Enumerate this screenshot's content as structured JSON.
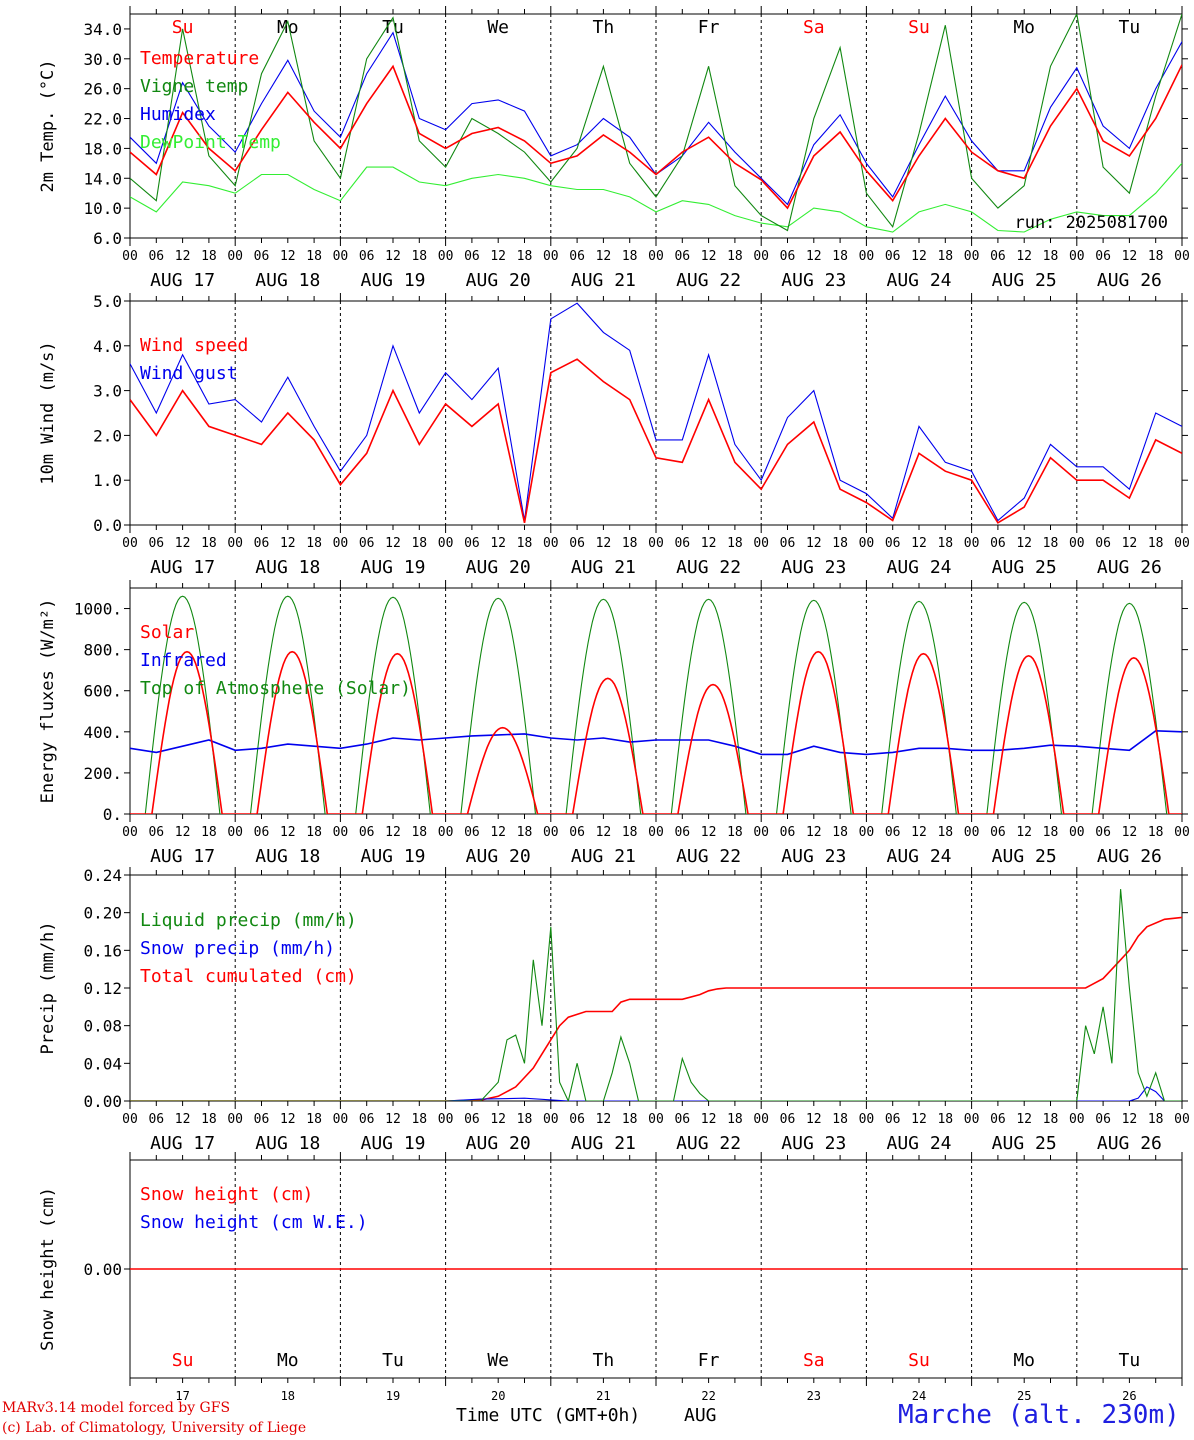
{
  "colors": {
    "red": "#ff0000",
    "blue": "#0000ee",
    "darkgreen": "#118811",
    "lightgreen": "#33ee33",
    "weekend": "#ff0000",
    "weekday": "#000000"
  },
  "days": {
    "dates": [
      "AUG 17",
      "AUG 18",
      "AUG 19",
      "AUG 20",
      "AUG 21",
      "AUG 22",
      "AUG 23",
      "AUG 24",
      "AUG 25",
      "AUG 26"
    ],
    "weekday_names": [
      "Su",
      "Mo",
      "Tu",
      "We",
      "Th",
      "Fr",
      "Sa",
      "Su",
      "Mo",
      "Tu"
    ],
    "weekend": [
      true,
      false,
      false,
      false,
      false,
      false,
      true,
      true,
      false,
      false
    ],
    "day_numbers": [
      "17",
      "18",
      "19",
      "20",
      "21",
      "22",
      "23",
      "24",
      "25",
      "26"
    ],
    "hour_ticks": [
      "00",
      "06",
      "12",
      "18"
    ],
    "final_hour": "00"
  },
  "footer": {
    "credit_line1": "MARv3.14 model forced by GFS",
    "credit_line2": "(c) Lab. of Climatology, University of Liege",
    "x_title": "Time UTC (GMT+0h)",
    "month": "AUG",
    "station": "Marche (alt. 230m)"
  },
  "chart_data": [
    {
      "type": "line",
      "ylabel": "2m Temp. (°C)",
      "ylim": [
        6.0,
        36.0
      ],
      "yticks": [
        "6.0",
        "10.0",
        "14.0",
        "18.0",
        "22.0",
        "26.0",
        "30.0",
        "34.0"
      ],
      "ytick_values": [
        6,
        10,
        14,
        18,
        22,
        26,
        30,
        34
      ],
      "annotation": "run: 2025081700",
      "series": [
        {
          "name": "Temperature",
          "color": "red",
          "hours": [
            0,
            6,
            12,
            18,
            24,
            30,
            36,
            42,
            48,
            54,
            60,
            66,
            72,
            78,
            84,
            90,
            96,
            102,
            108,
            114,
            120,
            126,
            132,
            138,
            144,
            150,
            156,
            162,
            168,
            174,
            180,
            186,
            192,
            198,
            204,
            210,
            216,
            222,
            228,
            234,
            240
          ],
          "values": [
            17.5,
            14.5,
            22.8,
            18.0,
            15.0,
            20.5,
            25.5,
            21.5,
            18.0,
            24.0,
            29.0,
            20.0,
            18.0,
            20.0,
            20.8,
            19.0,
            16.0,
            17.0,
            19.8,
            17.5,
            14.5,
            17.5,
            19.5,
            16.0,
            13.8,
            10.0,
            17.0,
            20.2,
            15.0,
            11.0,
            17.0,
            22.0,
            17.5,
            15.0,
            14.0,
            21.0,
            26.0,
            19.0,
            17.0,
            22.0,
            29.2
          ]
        },
        {
          "name": "Vigne temp",
          "color": "darkgreen",
          "hours": [
            0,
            6,
            12,
            18,
            24,
            30,
            36,
            42,
            48,
            54,
            60,
            66,
            72,
            78,
            84,
            90,
            96,
            102,
            108,
            114,
            120,
            126,
            132,
            138,
            144,
            150,
            156,
            162,
            168,
            174,
            180,
            186,
            192,
            198,
            204,
            210,
            216,
            222,
            228,
            234,
            240
          ],
          "values": [
            14.0,
            11.0,
            34.0,
            17.0,
            13.0,
            28.0,
            35.0,
            19.0,
            14.0,
            30.0,
            35.5,
            19.0,
            15.5,
            22.0,
            20.0,
            17.5,
            13.5,
            18.0,
            29.0,
            16.0,
            11.5,
            17.0,
            29.0,
            13.0,
            9.0,
            7.0,
            22.0,
            31.5,
            12.0,
            7.5,
            20.0,
            34.5,
            14.0,
            10.0,
            13.0,
            29.0,
            36.0,
            15.5,
            12.0,
            25.0,
            36.0
          ]
        },
        {
          "name": "Humidex",
          "color": "blue",
          "hours": [
            0,
            6,
            12,
            18,
            24,
            30,
            36,
            42,
            48,
            54,
            60,
            66,
            72,
            78,
            84,
            90,
            96,
            102,
            108,
            114,
            120,
            126,
            132,
            138,
            144,
            150,
            156,
            162,
            168,
            174,
            180,
            186,
            192,
            198,
            204,
            210,
            216,
            222,
            228,
            234,
            240
          ],
          "values": [
            19.5,
            16.0,
            26.8,
            21.0,
            17.5,
            24.0,
            29.8,
            23.0,
            19.5,
            28.0,
            33.5,
            22.0,
            20.5,
            24.0,
            24.5,
            23.0,
            17.0,
            18.5,
            22.0,
            19.5,
            14.5,
            17.0,
            21.5,
            17.5,
            14.0,
            10.5,
            18.5,
            22.5,
            16.0,
            11.5,
            18.5,
            25.0,
            19.0,
            15.0,
            15.0,
            23.5,
            28.8,
            21.0,
            18.0,
            26.0,
            32.3
          ]
        },
        {
          "name": "DewPoint Temp",
          "color": "lightgreen",
          "hours": [
            0,
            6,
            12,
            18,
            24,
            30,
            36,
            42,
            48,
            54,
            60,
            66,
            72,
            78,
            84,
            90,
            96,
            102,
            108,
            114,
            120,
            126,
            132,
            138,
            144,
            150,
            156,
            162,
            168,
            174,
            180,
            186,
            192,
            198,
            204,
            210,
            216,
            222,
            228,
            234,
            240
          ],
          "values": [
            11.5,
            9.5,
            13.5,
            13.0,
            12.0,
            14.5,
            14.5,
            12.5,
            11.0,
            15.5,
            15.5,
            13.5,
            13.0,
            14.0,
            14.5,
            14.0,
            13.0,
            12.5,
            12.5,
            11.5,
            9.5,
            11.0,
            10.5,
            9.0,
            8.0,
            7.5,
            10.0,
            9.5,
            7.5,
            6.8,
            9.5,
            10.5,
            9.5,
            7.0,
            6.8,
            8.5,
            9.5,
            9.0,
            9.0,
            12.0,
            16.0
          ]
        }
      ]
    },
    {
      "type": "line",
      "ylabel": "10m Wind (m/s)",
      "ylim": [
        0.0,
        5.0
      ],
      "yticks": [
        "0.0",
        "1.0",
        "2.0",
        "3.0",
        "4.0",
        "5.0"
      ],
      "ytick_values": [
        0,
        1,
        2,
        3,
        4,
        5
      ],
      "series": [
        {
          "name": "Wind speed",
          "color": "red",
          "hours": [
            0,
            6,
            12,
            18,
            24,
            30,
            36,
            42,
            48,
            54,
            60,
            66,
            72,
            78,
            84,
            90,
            96,
            102,
            108,
            114,
            120,
            126,
            132,
            138,
            144,
            150,
            156,
            162,
            168,
            174,
            180,
            186,
            192,
            198,
            204,
            210,
            216,
            222,
            228,
            234,
            240
          ],
          "values": [
            2.8,
            2.0,
            3.0,
            2.2,
            2.0,
            1.8,
            2.5,
            1.9,
            0.9,
            1.6,
            3.0,
            1.8,
            2.7,
            2.2,
            2.7,
            0.05,
            3.4,
            3.7,
            3.2,
            2.8,
            1.5,
            1.4,
            2.8,
            1.4,
            0.8,
            1.8,
            2.3,
            0.8,
            0.5,
            0.1,
            1.6,
            1.2,
            1.0,
            0.05,
            0.4,
            1.5,
            1.0,
            1.0,
            0.6,
            1.9,
            1.6
          ]
        },
        {
          "name": "Wind gust",
          "color": "blue",
          "hours": [
            0,
            6,
            12,
            18,
            24,
            30,
            36,
            42,
            48,
            54,
            60,
            66,
            72,
            78,
            84,
            90,
            96,
            102,
            108,
            114,
            120,
            126,
            132,
            138,
            144,
            150,
            156,
            162,
            168,
            174,
            180,
            186,
            192,
            198,
            204,
            210,
            216,
            222,
            228,
            234,
            240
          ],
          "values": [
            3.6,
            2.5,
            3.8,
            2.7,
            2.8,
            2.3,
            3.3,
            2.2,
            1.2,
            2.0,
            4.0,
            2.5,
            3.4,
            2.8,
            3.5,
            0.1,
            4.6,
            4.95,
            4.3,
            3.9,
            1.9,
            1.9,
            3.8,
            1.8,
            1.0,
            2.4,
            3.0,
            1.0,
            0.7,
            0.15,
            2.2,
            1.4,
            1.2,
            0.1,
            0.6,
            1.8,
            1.3,
            1.3,
            0.8,
            2.5,
            2.2
          ]
        }
      ]
    },
    {
      "type": "line",
      "ylabel": "Energy fluxes (W/m²)",
      "ylim": [
        0,
        1100
      ],
      "yticks": [
        "0.",
        "200.",
        "400.",
        "600.",
        "800.",
        "1000."
      ],
      "ytick_values": [
        0,
        200,
        400,
        600,
        800,
        1000
      ],
      "series": [
        {
          "name": "Solar",
          "color": "red",
          "daily_peak": [
            790,
            790,
            780,
            420,
            660,
            630,
            790,
            780,
            770,
            760
          ],
          "peak_hour": 13.0,
          "half_width_hours": 8.0
        },
        {
          "name": "Infrared",
          "color": "blue",
          "hours": [
            0,
            6,
            12,
            18,
            24,
            30,
            36,
            42,
            48,
            54,
            60,
            66,
            72,
            78,
            84,
            90,
            96,
            102,
            108,
            114,
            120,
            126,
            132,
            138,
            144,
            150,
            156,
            162,
            168,
            174,
            180,
            186,
            192,
            198,
            204,
            210,
            216,
            222,
            228,
            234,
            240
          ],
          "values": [
            320,
            300,
            330,
            360,
            310,
            320,
            340,
            330,
            320,
            340,
            370,
            360,
            370,
            380,
            385,
            390,
            370,
            360,
            370,
            350,
            360,
            360,
            360,
            330,
            290,
            290,
            330,
            300,
            290,
            300,
            320,
            320,
            310,
            310,
            320,
            335,
            330,
            320,
            310,
            405,
            400
          ]
        },
        {
          "name": "Top of Atmosphere (Solar)",
          "color": "darkgreen",
          "daily_peak": [
            1060,
            1060,
            1055,
            1050,
            1045,
            1045,
            1040,
            1035,
            1030,
            1025
          ],
          "peak_hour": 12.0,
          "half_width_hours": 8.5
        }
      ]
    },
    {
      "type": "line",
      "ylabel": "Precip (mm/h)",
      "ylim": [
        0.0,
        0.24
      ],
      "yticks": [
        "0.00",
        "0.04",
        "0.08",
        "0.12",
        "0.16",
        "0.20",
        "0.24"
      ],
      "ytick_values": [
        0,
        0.04,
        0.08,
        0.12,
        0.16,
        0.2,
        0.24
      ],
      "series": [
        {
          "name": "Liquid precip (mm/h)",
          "color": "darkgreen",
          "hours": [
            0,
            72,
            80,
            84,
            86,
            88,
            90,
            92,
            94,
            96,
            98,
            100,
            102,
            104,
            106,
            108,
            110,
            112,
            114,
            116,
            118,
            120,
            124,
            126,
            128,
            130,
            132,
            200,
            216,
            218,
            220,
            222,
            224,
            226,
            228,
            230,
            232,
            234,
            236,
            238,
            240
          ],
          "values": [
            0,
            0,
            0.0,
            0.02,
            0.065,
            0.07,
            0.04,
            0.15,
            0.08,
            0.185,
            0.02,
            0.0,
            0.04,
            0.0,
            0.0,
            0.0,
            0.03,
            0.068,
            0.04,
            0.0,
            0.0,
            0.0,
            0.0,
            0.045,
            0.02,
            0.008,
            0.0,
            0.0,
            0.0,
            0.08,
            0.05,
            0.1,
            0.04,
            0.225,
            0.12,
            0.03,
            0.005,
            0.03,
            0.0,
            0.0,
            0.0
          ]
        },
        {
          "name": "Snow precip (mm/h)",
          "color": "blue",
          "hours": [
            0,
            72,
            80,
            90,
            100,
            228,
            230,
            232,
            234,
            236,
            240
          ],
          "values": [
            0,
            0,
            0.002,
            0.003,
            0.0,
            0.0,
            0.003,
            0.015,
            0.01,
            0.0,
            0.0
          ]
        },
        {
          "name": "Total cumulated (cm)",
          "color": "red",
          "hours": [
            0,
            72,
            80,
            84,
            88,
            90,
            92,
            94,
            96,
            98,
            100,
            102,
            104,
            110,
            112,
            114,
            120,
            126,
            130,
            132,
            134,
            136,
            216,
            218,
            220,
            222,
            224,
            226,
            228,
            230,
            232,
            236,
            240
          ],
          "values": [
            0,
            0,
            0.001,
            0.005,
            0.015,
            0.025,
            0.035,
            0.05,
            0.065,
            0.08,
            0.089,
            0.092,
            0.095,
            0.095,
            0.105,
            0.108,
            0.108,
            0.108,
            0.113,
            0.117,
            0.119,
            0.12,
            0.12,
            0.12,
            0.125,
            0.13,
            0.14,
            0.15,
            0.16,
            0.175,
            0.185,
            0.193,
            0.195
          ]
        }
      ]
    },
    {
      "type": "line",
      "ylabel": "Snow height (cm)",
      "ylim": [
        -1.0,
        1.0
      ],
      "yticks": [
        "0.00"
      ],
      "ytick_values": [
        0
      ],
      "series": [
        {
          "name": "Snow height (cm)",
          "color": "red",
          "hours": [
            0,
            240
          ],
          "values": [
            0,
            0
          ]
        },
        {
          "name": "Snow height (cm W.E.)",
          "color": "blue",
          "hours": [],
          "values": []
        }
      ]
    }
  ]
}
